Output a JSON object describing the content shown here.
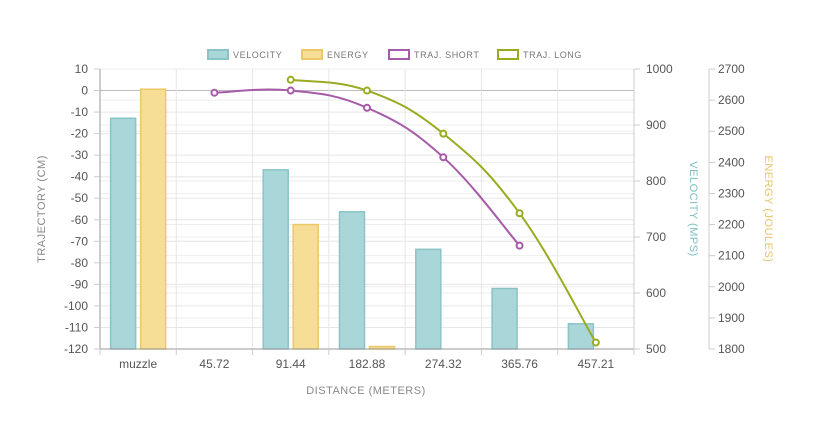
{
  "chart_data": {
    "type": "bar",
    "categories": [
      "muzzle",
      "45.72",
      "91.44",
      "182.88",
      "274.32",
      "365.76",
      "457.21"
    ],
    "xlabel": "DISTANCE (METERS)",
    "grid": true,
    "legend_position": "top-center",
    "axes": {
      "trajectory": {
        "label": "TRAJECTORY (CM)",
        "range": [
          -120,
          10
        ],
        "ticks": [
          10,
          0,
          -10,
          -20,
          -30,
          -40,
          -50,
          -60,
          -70,
          -80,
          -90,
          -100,
          -110,
          -120
        ],
        "color": "#888888"
      },
      "velocity": {
        "label": "VELOCITY (MPS)",
        "range": [
          500,
          1000
        ],
        "ticks": [
          1000,
          900,
          800,
          700,
          600,
          500
        ],
        "color": "#7fbfc1"
      },
      "energy": {
        "label": "ENERGY (JOULES)",
        "range": [
          1800,
          2700
        ],
        "ticks": [
          2700,
          2600,
          2500,
          2400,
          2300,
          2200,
          2100,
          2000,
          1900,
          1800
        ],
        "color": "#e6c46a"
      }
    },
    "series": [
      {
        "name": "VELOCITY",
        "kind": "bar",
        "axis": "velocity",
        "color": "#a9d6d8",
        "stroke": "#8cc3c6",
        "values": [
          912,
          null,
          820,
          745,
          678,
          608,
          545
        ]
      },
      {
        "name": "ENERGY",
        "kind": "bar",
        "axis": "energy",
        "color": "#f6de97",
        "stroke": "#ecc869",
        "values": [
          2635,
          null,
          2200,
          1808,
          null,
          null,
          null
        ]
      },
      {
        "name": "TRAJ. SHORT",
        "kind": "line",
        "axis": "trajectory",
        "color": "#a55ba8",
        "values": [
          null,
          -1,
          0,
          -8,
          -31,
          -72,
          null
        ]
      },
      {
        "name": "TRAJ. LONG",
        "kind": "line",
        "axis": "trajectory",
        "color": "#9aab20",
        "values": [
          null,
          null,
          5,
          0,
          -20,
          -57,
          -117
        ]
      }
    ]
  }
}
